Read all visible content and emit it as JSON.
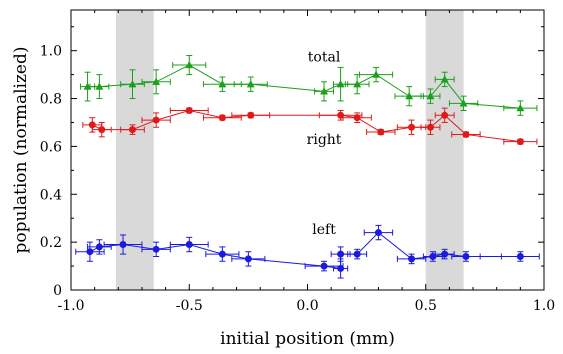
{
  "chart_data": {
    "type": "line",
    "xlabel": "initial position (mm)",
    "ylabel": "population (normalized)",
    "xlim": [
      -1.0,
      1.0
    ],
    "ylim": [
      0,
      1.17
    ],
    "x_ticks": [
      "-1.0",
      "-0.5",
      "0.0",
      "0.5",
      "1.0"
    ],
    "x_tick_values": [
      -1.0,
      -0.5,
      0.0,
      0.5,
      1.0
    ],
    "y_ticks": [
      "0",
      "0.2",
      "0.4",
      "0.6",
      "0.8",
      "1.0"
    ],
    "y_tick_values": [
      0,
      0.2,
      0.4,
      0.6,
      0.8,
      1.0
    ],
    "grid": false,
    "shaded_regions": [
      {
        "x": [
          -0.81,
          -0.65
        ],
        "color": "#d9d9d9"
      },
      {
        "x": [
          0.5,
          0.66
        ],
        "color": "#d9d9d9"
      }
    ],
    "series": [
      {
        "name": "total",
        "color": "#1aa01a",
        "marker": "triangle",
        "label_at": {
          "x": 0.07,
          "y": 0.955
        },
        "points": [
          {
            "x": -0.93,
            "y": 0.85,
            "xerr": 0.03,
            "yerr": 0.06
          },
          {
            "x": -0.88,
            "y": 0.85,
            "xerr": 0.04,
            "yerr": 0.05
          },
          {
            "x": -0.74,
            "y": 0.86,
            "xerr": 0.05,
            "yerr": 0.06
          },
          {
            "x": -0.64,
            "y": 0.87,
            "xerr": 0.06,
            "yerr": 0.05
          },
          {
            "x": -0.5,
            "y": 0.94,
            "xerr": 0.07,
            "yerr": 0.04
          },
          {
            "x": -0.36,
            "y": 0.86,
            "xerr": 0.08,
            "yerr": 0.03
          },
          {
            "x": -0.24,
            "y": 0.86,
            "xerr": 0.07,
            "yerr": 0.03
          },
          {
            "x": 0.07,
            "y": 0.83,
            "xerr": 0.04,
            "yerr": 0.04
          },
          {
            "x": 0.14,
            "y": 0.86,
            "xerr": 0.03,
            "yerr": 0.07
          },
          {
            "x": 0.21,
            "y": 0.86,
            "xerr": 0.05,
            "yerr": 0.04
          },
          {
            "x": 0.29,
            "y": 0.9,
            "xerr": 0.07,
            "yerr": 0.03
          },
          {
            "x": 0.43,
            "y": 0.81,
            "xerr": 0.06,
            "yerr": 0.04
          },
          {
            "x": 0.52,
            "y": 0.81,
            "xerr": 0.04,
            "yerr": 0.03
          },
          {
            "x": 0.58,
            "y": 0.88,
            "xerr": 0.04,
            "yerr": 0.03
          },
          {
            "x": 0.66,
            "y": 0.78,
            "xerr": 0.06,
            "yerr": 0.03
          },
          {
            "x": 0.9,
            "y": 0.76,
            "xerr": 0.07,
            "yerr": 0.03
          }
        ]
      },
      {
        "name": "right",
        "color": "#e01a1a",
        "marker": "circle",
        "label_at": {
          "x": 0.07,
          "y": 0.61
        },
        "points": [
          {
            "x": -0.91,
            "y": 0.69,
            "xerr": 0.04,
            "yerr": 0.03
          },
          {
            "x": -0.87,
            "y": 0.67,
            "xerr": 0.04,
            "yerr": 0.03
          },
          {
            "x": -0.74,
            "y": 0.67,
            "xerr": 0.05,
            "yerr": 0.02
          },
          {
            "x": -0.64,
            "y": 0.71,
            "xerr": 0.06,
            "yerr": 0.03
          },
          {
            "x": -0.5,
            "y": 0.75,
            "xerr": 0.08,
            "yerr": 0.01
          },
          {
            "x": -0.36,
            "y": 0.72,
            "xerr": 0.08,
            "yerr": 0.01
          },
          {
            "x": -0.24,
            "y": 0.73,
            "xerr": 0.08,
            "yerr": 0.01
          },
          {
            "x": 0.14,
            "y": 0.73,
            "xerr": 0.09,
            "yerr": 0.02
          },
          {
            "x": 0.21,
            "y": 0.72,
            "xerr": 0.06,
            "yerr": 0.02
          },
          {
            "x": 0.31,
            "y": 0.66,
            "xerr": 0.06,
            "yerr": 0.01
          },
          {
            "x": 0.44,
            "y": 0.68,
            "xerr": 0.06,
            "yerr": 0.03
          },
          {
            "x": 0.52,
            "y": 0.68,
            "xerr": 0.04,
            "yerr": 0.03
          },
          {
            "x": 0.58,
            "y": 0.73,
            "xerr": 0.04,
            "yerr": 0.03
          },
          {
            "x": 0.67,
            "y": 0.65,
            "xerr": 0.06,
            "yerr": 0.01
          },
          {
            "x": 0.9,
            "y": 0.62,
            "xerr": 0.07,
            "yerr": 0.01
          }
        ]
      },
      {
        "name": "left",
        "color": "#1a1ae0",
        "marker": "circle",
        "label_at": {
          "x": 0.07,
          "y": 0.235
        },
        "points": [
          {
            "x": -0.92,
            "y": 0.16,
            "xerr": 0.06,
            "yerr": 0.04
          },
          {
            "x": -0.88,
            "y": 0.18,
            "xerr": 0.05,
            "yerr": 0.03
          },
          {
            "x": -0.78,
            "y": 0.19,
            "xerr": 0.08,
            "yerr": 0.04
          },
          {
            "x": -0.64,
            "y": 0.17,
            "xerr": 0.06,
            "yerr": 0.03
          },
          {
            "x": -0.5,
            "y": 0.19,
            "xerr": 0.08,
            "yerr": 0.03
          },
          {
            "x": -0.36,
            "y": 0.15,
            "xerr": 0.07,
            "yerr": 0.03
          },
          {
            "x": -0.25,
            "y": 0.13,
            "xerr": 0.07,
            "yerr": 0.03
          },
          {
            "x": 0.07,
            "y": 0.1,
            "xerr": 0.08,
            "yerr": 0.02
          },
          {
            "x": 0.14,
            "y": 0.09,
            "xerr": 0.03,
            "yerr": 0.04
          },
          {
            "x": 0.14,
            "y": 0.15,
            "xerr": 0.04,
            "yerr": 0.03
          },
          {
            "x": 0.21,
            "y": 0.15,
            "xerr": 0.04,
            "yerr": 0.02
          },
          {
            "x": 0.3,
            "y": 0.24,
            "xerr": 0.06,
            "yerr": 0.03
          },
          {
            "x": 0.44,
            "y": 0.13,
            "xerr": 0.06,
            "yerr": 0.02
          },
          {
            "x": 0.53,
            "y": 0.14,
            "xerr": 0.04,
            "yerr": 0.02
          },
          {
            "x": 0.58,
            "y": 0.15,
            "xerr": 0.04,
            "yerr": 0.02
          },
          {
            "x": 0.67,
            "y": 0.14,
            "xerr": 0.06,
            "yerr": 0.02
          },
          {
            "x": 0.9,
            "y": 0.14,
            "xerr": 0.08,
            "yerr": 0.02
          }
        ]
      }
    ]
  }
}
